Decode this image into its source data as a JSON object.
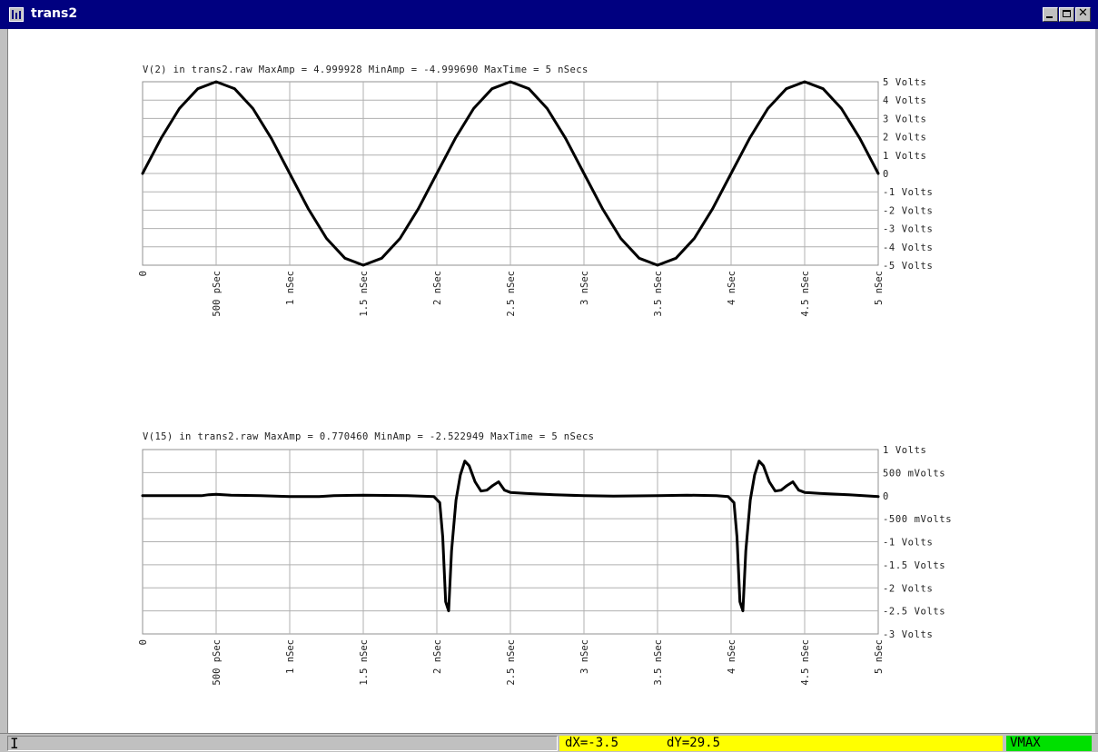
{
  "window": {
    "title": "trans2",
    "icon": "waveform-app-icon",
    "buttons": {
      "minimize": "minimize-icon",
      "maximize": "maximize-icon",
      "close_glyph": "✕"
    }
  },
  "chart_data": [
    {
      "type": "line",
      "title": "V(2) in trans2.raw  MaxAmp = 4.999928  MinAmp = -4.999690  MaxTime = 5 nSecs",
      "xlabel": "",
      "ylabel": "",
      "xlim": [
        0,
        5
      ],
      "ylim": [
        -5,
        5
      ],
      "x_unit": "nSec",
      "grid": true,
      "x_tick_labels": [
        "0",
        "500 pSec",
        "1 nSec",
        "1.5 nSec",
        "2 nSec",
        "2.5 nSec",
        "3 nSec",
        "3.5 nSec",
        "4 nSec",
        "4.5 nSec",
        "5 nSec"
      ],
      "y_tick_labels": [
        "5 Volts",
        "4 Volts",
        "3 Volts",
        "2 Volts",
        "1 Volts",
        "0",
        "-1 Volts",
        "-2 Volts",
        "-3 Volts",
        "-4 Volts",
        "-5 Volts"
      ],
      "series": [
        {
          "x": [
            0,
            0.125,
            0.25,
            0.375,
            0.5,
            0.625,
            0.75,
            0.875,
            1.0,
            1.125,
            1.25,
            1.375,
            1.5,
            1.625,
            1.75,
            1.875,
            2.0,
            2.125,
            2.25,
            2.375,
            2.5,
            2.625,
            2.75,
            2.875,
            3.0,
            3.125,
            3.25,
            3.375,
            3.5,
            3.625,
            3.75,
            3.875,
            4.0,
            4.125,
            4.25,
            4.375,
            4.5,
            4.625,
            4.75,
            4.875,
            5.0
          ],
          "values": [
            0,
            1.91,
            3.54,
            4.62,
            5.0,
            4.62,
            3.54,
            1.91,
            0,
            -1.91,
            -3.54,
            -4.62,
            -5.0,
            -4.62,
            -3.54,
            -1.91,
            0,
            1.91,
            3.54,
            4.62,
            5.0,
            4.62,
            3.54,
            1.91,
            0,
            -1.91,
            -3.54,
            -4.62,
            -5.0,
            -4.62,
            -3.54,
            -1.91,
            0,
            1.91,
            3.54,
            4.62,
            5.0,
            4.62,
            3.54,
            1.91,
            0
          ]
        }
      ]
    },
    {
      "type": "line",
      "title": "V(15) in trans2.raw  MaxAmp = 0.770460  MinAmp = -2.522949  MaxTime = 5 nSecs",
      "xlabel": "",
      "ylabel": "",
      "xlim": [
        0,
        5
      ],
      "ylim": [
        -3,
        1
      ],
      "x_unit": "nSec",
      "grid": true,
      "x_tick_labels": [
        "0",
        "500 pSec",
        "1 nSec",
        "1.5 nSec",
        "2 nSec",
        "2.5 nSec",
        "3 nSec",
        "3.5 nSec",
        "4 nSec",
        "4.5 nSec",
        "5 nSec"
      ],
      "y_tick_labels": [
        "1 Volts",
        "500 mVolts",
        "0",
        "-500 mVolts",
        "-1 Volts",
        "-1.5 Volts",
        "-2 Volts",
        "-2.5 Volts",
        "-3 Volts"
      ],
      "series": [
        {
          "x": [
            0,
            0.4,
            0.45,
            0.5,
            0.6,
            0.8,
            1.0,
            1.2,
            1.3,
            1.5,
            1.8,
            1.98,
            2.02,
            2.04,
            2.06,
            2.08,
            2.1,
            2.13,
            2.16,
            2.19,
            2.22,
            2.26,
            2.3,
            2.34,
            2.38,
            2.42,
            2.46,
            2.5,
            2.6,
            2.8,
            3.0,
            3.2,
            3.5,
            3.7,
            3.9,
            3.98,
            4.02,
            4.04,
            4.06,
            4.08,
            4.1,
            4.13,
            4.16,
            4.19,
            4.22,
            4.26,
            4.3,
            4.34,
            4.38,
            4.42,
            4.46,
            4.5,
            4.6,
            4.8,
            5.0
          ],
          "values": [
            0,
            0,
            0.02,
            0.03,
            0.01,
            0,
            -0.02,
            -0.02,
            0,
            0.01,
            0,
            -0.02,
            -0.15,
            -0.9,
            -2.3,
            -2.5,
            -1.2,
            -0.1,
            0.45,
            0.75,
            0.65,
            0.3,
            0.1,
            0.12,
            0.22,
            0.3,
            0.12,
            0.07,
            0.05,
            0.02,
            0,
            -0.01,
            0,
            0.01,
            0,
            -0.02,
            -0.15,
            -0.9,
            -2.3,
            -2.5,
            -1.2,
            -0.1,
            0.45,
            0.75,
            0.65,
            0.3,
            0.1,
            0.12,
            0.22,
            0.3,
            0.12,
            0.07,
            0.05,
            0.02,
            -0.02
          ]
        }
      ]
    }
  ],
  "status": {
    "cursor_glyph": "I",
    "dx": "dX=-3.5",
    "dy": "dY=29.5",
    "mode": "VMAX"
  },
  "colors": {
    "titlebar": "#000080",
    "trace": "#000000",
    "grid": "#b0b0b0",
    "status_highlight": "#ffff00",
    "status_mode": "#00e000"
  }
}
